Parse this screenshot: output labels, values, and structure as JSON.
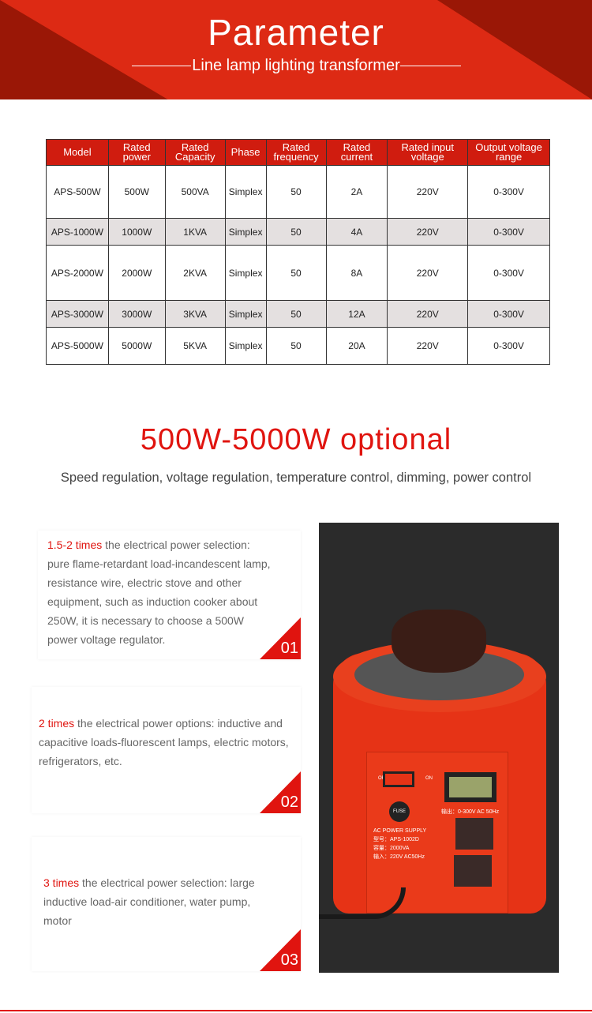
{
  "header": {
    "title": "Parameter",
    "subtitle": "Line lamp lighting transformer"
  },
  "table": {
    "headers": [
      "Model",
      "Rated power",
      "Rated Capacity",
      "Phase",
      "Rated frequency",
      "Rated current",
      "Rated input voltage",
      "Output voltage range"
    ],
    "rows": [
      [
        "APS-500W",
        "500W",
        "500VA",
        "Simplex",
        "50",
        "2A",
        "220V",
        "0-300V"
      ],
      [
        "APS-1000W",
        "1000W",
        "1KVA",
        "Simplex",
        "50",
        "4A",
        "220V",
        "0-300V"
      ],
      [
        "APS-2000W",
        "2000W",
        "2KVA",
        "Simplex",
        "50",
        "8A",
        "220V",
        "0-300V"
      ],
      [
        "APS-3000W",
        "3000W",
        "3KVA",
        "Simplex",
        "50",
        "12A",
        "220V",
        "0-300V"
      ],
      [
        "APS-5000W",
        "5000W",
        "5KVA",
        "Simplex",
        "50",
        "20A",
        "220V",
        "0-300V"
      ]
    ]
  },
  "optional": {
    "title": "500W-5000W optional",
    "subtitle": "Speed regulation, voltage regulation, temperature control, dimming, power control"
  },
  "blocks": [
    {
      "highlight": "1.5-2 times",
      "text": " the electrical power selection: pure flame-retardant  load-incandescent lamp, resistance wire, electric stove and other equipment, such as induction cooker  about 250W, it is necessary to choose a 500W power voltage regulator.",
      "num": "01"
    },
    {
      "highlight": "2 times",
      "text": " the electrical power options: inductive and capacitive loads-fluorescent lamps, electric motors, refrigerators, etc.",
      "num": "02"
    },
    {
      "highlight": "3 times",
      "text": " the electrical power selection: large inductive load-air conditioner, water pump, motor",
      "num": "03"
    }
  ],
  "product": {
    "off": "OFF",
    "on": "ON",
    "output": "输出：0-300V AC 50Hz",
    "fuse": "FUSE",
    "supply": "AC POWER SUPPLY",
    "model": "型号：APS-1002D",
    "capacity": "容量：2000VA",
    "input": "输入：220V AC50Hz"
  },
  "colors": {
    "accent": "#e0140f",
    "banner": "#dd2a14",
    "banner_dark": "#9a1706"
  }
}
